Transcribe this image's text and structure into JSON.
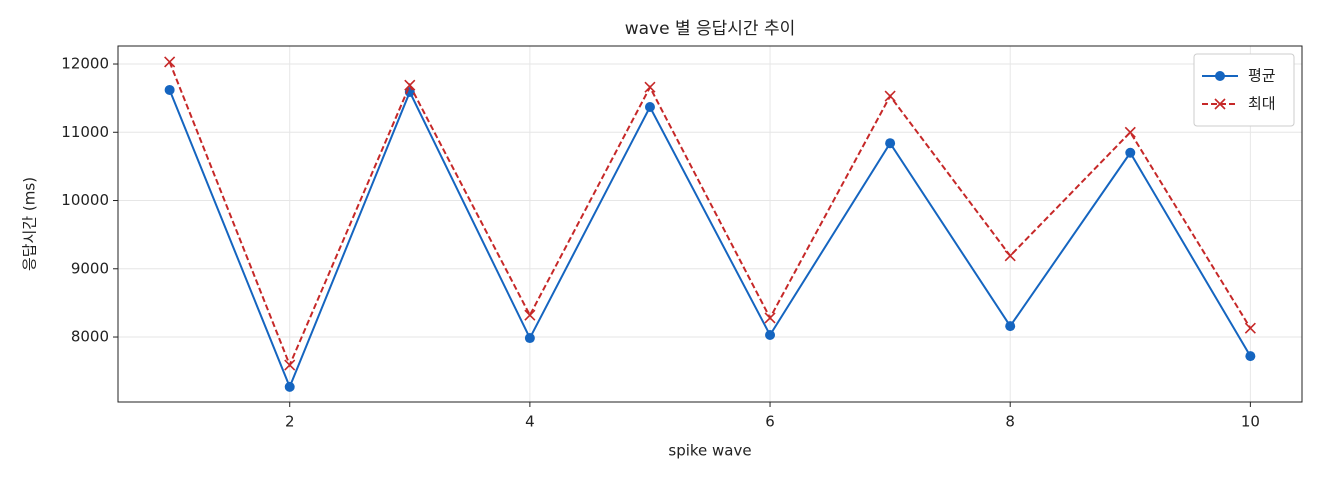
{
  "chart_data": {
    "type": "line",
    "title": "wave 별 응답시간 추이",
    "x_label": "spike wave",
    "y_label": "응답시간 (ms)",
    "x": [
      1,
      2,
      3,
      4,
      5,
      6,
      7,
      8,
      9,
      10
    ],
    "series": [
      {
        "name": "평균",
        "color": "#1565c0",
        "marker": "o",
        "linestyle": "solid",
        "values": [
          11620,
          7270,
          11590,
          7985,
          11370,
          8030,
          10840,
          8160,
          10700,
          7720
        ]
      },
      {
        "name": "최대",
        "color": "#c62828",
        "marker": "x",
        "linestyle": "dashed",
        "values": [
          12030,
          7590,
          11690,
          8320,
          11660,
          8280,
          11530,
          9190,
          11000,
          8130
        ]
      }
    ],
    "xlim": [
      0.57,
      10.43
    ],
    "ylim": [
      7048,
      12264
    ],
    "xticks": [
      2,
      4,
      6,
      8,
      10
    ],
    "yticks": [
      8000,
      9000,
      10000,
      11000,
      12000
    ],
    "grid": true,
    "legend": "upper right"
  }
}
